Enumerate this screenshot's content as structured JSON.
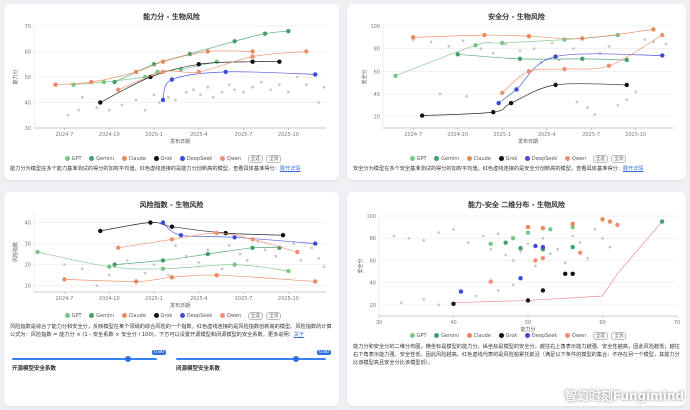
{
  "colors": {
    "GPT": "#7bc58a",
    "Gemini": "#44a06a",
    "Claude": "#e98a5c",
    "Grok": "#111111",
    "DeepSeek": "#3d4bd8",
    "Qwen": "#ee8f72",
    "other": "#c9c9c9"
  },
  "legend": {
    "items": [
      "GPT",
      "Gemini",
      "Claude",
      "Grok",
      "DeepSeek",
      "Qwen"
    ],
    "btn_all": "全选",
    "btn_none": "全消"
  },
  "chart_data": [
    {
      "type": "scatter",
      "title": "能力分 - 生物风险",
      "xlabel": "发布日期",
      "ylabel": "能力分",
      "xticks": [
        "2024-7",
        "2024-10",
        "2025-1",
        "2025-4",
        "2025-7",
        "2025-10"
      ],
      "yticks": [
        30,
        40,
        50,
        60,
        70
      ],
      "ylim": [
        30,
        70
      ],
      "xlim": [
        2024.33,
        2025.96
      ],
      "series": [
        {
          "name": "GPT",
          "points": [
            [
              2024.55,
              47
            ],
            [
              2024.72,
              48
            ],
            [
              2024.95,
              50
            ],
            [
              2025.02,
              52
            ],
            [
              2025.15,
              53
            ],
            [
              2025.35,
              56
            ]
          ]
        },
        {
          "name": "Gemini",
          "points": [
            [
              2024.78,
              48
            ],
            [
              2025.0,
              55
            ],
            [
              2025.2,
              59
            ],
            [
              2025.45,
              64
            ],
            [
              2025.62,
              67
            ],
            [
              2025.75,
              68
            ]
          ]
        },
        {
          "name": "Claude",
          "points": [
            [
              2024.45,
              47
            ],
            [
              2024.65,
              48
            ],
            [
              2024.9,
              52
            ],
            [
              2025.05,
              56
            ],
            [
              2025.3,
              60
            ],
            [
              2025.55,
              60
            ]
          ]
        },
        {
          "name": "Grok",
          "points": [
            [
              2024.7,
              40
            ],
            [
              2024.98,
              50
            ],
            [
              2025.25,
              55
            ],
            [
              2025.55,
              56
            ],
            [
              2025.7,
              56
            ]
          ]
        },
        {
          "name": "DeepSeek",
          "points": [
            [
              2025.05,
              41
            ],
            [
              2025.1,
              49
            ],
            [
              2025.4,
              52
            ],
            [
              2025.9,
              51
            ]
          ]
        },
        {
          "name": "Qwen",
          "points": [
            [
              2024.8,
              45
            ],
            [
              2025.05,
              52
            ],
            [
              2025.25,
              52
            ],
            [
              2025.55,
              58
            ],
            [
              2025.85,
              60
            ]
          ]
        }
      ],
      "others": [
        [
          2024.52,
          35
        ],
        [
          2024.58,
          37
        ],
        [
          2024.6,
          42
        ],
        [
          2024.68,
          38
        ],
        [
          2024.75,
          37
        ],
        [
          2024.82,
          39
        ],
        [
          2024.9,
          41
        ],
        [
          2024.95,
          37
        ],
        [
          2025.0,
          43
        ],
        [
          2025.03,
          40
        ],
        [
          2025.08,
          42
        ],
        [
          2025.12,
          41
        ],
        [
          2025.18,
          44
        ],
        [
          2025.22,
          45
        ],
        [
          2025.26,
          43
        ],
        [
          2025.3,
          46
        ],
        [
          2025.33,
          42
        ],
        [
          2025.38,
          44
        ],
        [
          2025.42,
          47
        ],
        [
          2025.45,
          45
        ],
        [
          2025.5,
          44
        ],
        [
          2025.55,
          46
        ],
        [
          2025.6,
          48
        ],
        [
          2025.65,
          45
        ],
        [
          2025.7,
          47
        ],
        [
          2025.75,
          44
        ],
        [
          2025.8,
          50
        ],
        [
          2025.85,
          47
        ],
        [
          2025.92,
          40
        ],
        [
          2025.95,
          46
        ]
      ],
      "description": "能力分为模型在多个能力基准测试的得分的加权平均值。红色虚线连接的是能力分创新高的模型，查看具体基准得分：",
      "link": "展开详情"
    },
    {
      "type": "scatter",
      "title": "安全分 - 生物风险",
      "xlabel": "发布日期",
      "ylabel": "安全分",
      "xticks": [
        "2024-7",
        "2024-10",
        "2025-1",
        "2025-4",
        "2025-7",
        "2025-10"
      ],
      "yticks": [
        20,
        40,
        60,
        80,
        100
      ],
      "ylim": [
        10,
        100
      ],
      "xlim": [
        2024.33,
        2025.96
      ],
      "series": [
        {
          "name": "GPT",
          "points": [
            [
              2024.4,
              56
            ],
            [
              2024.85,
              83
            ],
            [
              2025.0,
              85
            ],
            [
              2025.35,
              88
            ],
            [
              2025.65,
              92
            ]
          ]
        },
        {
          "name": "Gemini",
          "points": [
            [
              2024.75,
              75
            ],
            [
              2025.1,
              71
            ],
            [
              2025.45,
              71
            ],
            [
              2025.7,
              70
            ]
          ]
        },
        {
          "name": "Claude",
          "points": [
            [
              2024.5,
              90
            ],
            [
              2024.9,
              92
            ],
            [
              2025.15,
              91
            ],
            [
              2025.45,
              89
            ],
            [
              2025.85,
              97
            ]
          ]
        },
        {
          "name": "Grok",
          "points": [
            [
              2024.55,
              21
            ],
            [
              2024.95,
              24
            ],
            [
              2025.05,
              32
            ],
            [
              2025.3,
              48
            ],
            [
              2025.7,
              48
            ]
          ]
        },
        {
          "name": "DeepSeek",
          "points": [
            [
              2024.98,
              32
            ],
            [
              2025.08,
              44
            ],
            [
              2025.3,
              73
            ],
            [
              2025.9,
              74
            ]
          ]
        },
        {
          "name": "Qwen",
          "points": [
            [
              2025.0,
              41
            ],
            [
              2025.15,
              60
            ],
            [
              2025.35,
              62
            ],
            [
              2025.6,
              65
            ],
            [
              2025.9,
              92
            ]
          ]
        }
      ],
      "others": [
        [
          2024.5,
          88
        ],
        [
          2024.6,
          86
        ],
        [
          2024.7,
          82
        ],
        [
          2024.78,
          87
        ],
        [
          2024.88,
          80
        ],
        [
          2024.95,
          76
        ],
        [
          2025.02,
          84
        ],
        [
          2025.1,
          78
        ],
        [
          2025.18,
          80
        ],
        [
          2025.22,
          68
        ],
        [
          2025.28,
          85
        ],
        [
          2025.32,
          70
        ],
        [
          2025.4,
          80
        ],
        [
          2025.42,
          33
        ],
        [
          2025.48,
          28
        ],
        [
          2025.52,
          22
        ],
        [
          2025.55,
          76
        ],
        [
          2025.6,
          82
        ],
        [
          2025.65,
          30
        ],
        [
          2025.7,
          35
        ],
        [
          2025.75,
          42
        ],
        [
          2025.8,
          88
        ],
        [
          2025.85,
          86
        ],
        [
          2025.92,
          84
        ],
        [
          2024.65,
          40
        ],
        [
          2024.8,
          38
        ]
      ],
      "description": "安全分为模型在多个安全基准测试的得分的加权平均值。红色虚线连接的是安全分创新高的模型，查看具体基准得分：",
      "link": "展开详情"
    },
    {
      "type": "scatter",
      "title": "风险指数 - 生物风险",
      "xlabel": "发布日期",
      "ylabel": "风险指数",
      "xticks": [
        "2024-7",
        "2024-10",
        "2025-1",
        "2025-4",
        "2025-7",
        "2025-10"
      ],
      "yticks": [
        10,
        20,
        30,
        40
      ],
      "ylim": [
        7,
        45
      ],
      "xlim": [
        2024.33,
        2025.96
      ],
      "series": [
        {
          "name": "GPT",
          "points": [
            [
              2024.35,
              26
            ],
            [
              2024.75,
              19
            ],
            [
              2025.05,
              18
            ],
            [
              2025.45,
              20
            ],
            [
              2025.75,
              17
            ]
          ]
        },
        {
          "name": "Gemini",
          "points": [
            [
              2024.78,
              20
            ],
            [
              2025.05,
              22
            ],
            [
              2025.3,
              25
            ],
            [
              2025.55,
              28
            ],
            [
              2025.7,
              28
            ]
          ]
        },
        {
          "name": "Claude",
          "points": [
            [
              2024.5,
              13
            ],
            [
              2024.9,
              12
            ],
            [
              2025.1,
              14
            ],
            [
              2025.35,
              15
            ],
            [
              2025.9,
              12
            ]
          ]
        },
        {
          "name": "Grok",
          "points": [
            [
              2024.7,
              36
            ],
            [
              2024.98,
              40
            ],
            [
              2025.1,
              38
            ],
            [
              2025.4,
              35
            ],
            [
              2025.72,
              34
            ]
          ]
        },
        {
          "name": "DeepSeek",
          "points": [
            [
              2025.05,
              40
            ],
            [
              2025.15,
              34
            ],
            [
              2025.45,
              33
            ],
            [
              2025.9,
              30
            ]
          ]
        },
        {
          "name": "Qwen",
          "points": [
            [
              2024.8,
              28
            ],
            [
              2025.1,
              32
            ],
            [
              2025.35,
              35
            ],
            [
              2025.55,
              32
            ],
            [
              2025.8,
              26
            ]
          ]
        }
      ],
      "others": [
        [
          2024.5,
          20
        ],
        [
          2024.6,
          18
        ],
        [
          2024.68,
          10
        ],
        [
          2024.75,
          15
        ],
        [
          2024.85,
          22
        ],
        [
          2024.95,
          16
        ],
        [
          2025.0,
          20
        ],
        [
          2025.08,
          15
        ],
        [
          2025.12,
          29
        ],
        [
          2025.18,
          24
        ],
        [
          2025.25,
          21
        ],
        [
          2025.3,
          27
        ],
        [
          2025.38,
          18
        ],
        [
          2025.42,
          29
        ],
        [
          2025.48,
          25
        ],
        [
          2025.52,
          22
        ],
        [
          2025.58,
          31
        ],
        [
          2025.62,
          27
        ],
        [
          2025.68,
          24
        ],
        [
          2025.78,
          30
        ],
        [
          2025.82,
          22
        ],
        [
          2025.88,
          28
        ],
        [
          2025.92,
          23
        ],
        [
          2025.95,
          19
        ]
      ],
      "description": "风险指数是综合了能力分和安全分，反映模型在某个领域的综合风险的一个指数。红色虚线连接的是风险指数创新高的模型。风险指数的计算公式为：风险指数 = 能力分 × (1 - 安全系数 × 安全分 / 100)，下方可以设置开源模型和闭源模型的安全系数。更多说明：",
      "link": "关于"
    },
    {
      "type": "scatter",
      "title": "能力-安全 二维分布 - 生物风险",
      "xlabel": "能力分",
      "ylabel": "安全分",
      "xticks": [
        30,
        40,
        50,
        60,
        70
      ],
      "yticks": [
        20,
        40,
        60,
        80,
        100
      ],
      "xlim": [
        30,
        70
      ],
      "ylim": [
        10,
        100
      ],
      "series": [
        {
          "name": "GPT",
          "points": [
            [
              45,
              75
            ],
            [
              48,
              80
            ],
            [
              50,
              85
            ],
            [
              53,
              88
            ],
            [
              56,
              90
            ]
          ]
        },
        {
          "name": "Gemini",
          "points": [
            [
              47,
              76
            ],
            [
              49,
              71
            ],
            [
              52,
              70
            ],
            [
              56,
              72
            ],
            [
              68,
              95
            ]
          ]
        },
        {
          "name": "Claude",
          "points": [
            [
              50,
              90
            ],
            [
              52,
              89
            ],
            [
              56,
              93
            ],
            [
              60,
              97
            ],
            [
              61,
              95
            ]
          ]
        },
        {
          "name": "Grok",
          "points": [
            [
              40,
              21
            ],
            [
              50,
              24
            ],
            [
              52,
              33
            ],
            [
              55,
              48
            ],
            [
              56,
              48
            ]
          ]
        },
        {
          "name": "DeepSeek",
          "points": [
            [
              41,
              32
            ],
            [
              49,
              44
            ],
            [
              51,
              73
            ],
            [
              52,
              72
            ]
          ]
        },
        {
          "name": "Qwen",
          "points": [
            [
              45,
              41
            ],
            [
              51,
              60
            ],
            [
              52,
              62
            ],
            [
              57,
              67
            ],
            [
              62,
              92
            ]
          ]
        }
      ],
      "frontier": [
        [
          40,
          22
        ],
        [
          50,
          24
        ],
        [
          60,
          28
        ],
        [
          62,
          48
        ],
        [
          68,
          95
        ]
      ],
      "others": [
        [
          32,
          82
        ],
        [
          34,
          80
        ],
        [
          36,
          78
        ],
        [
          38,
          85
        ],
        [
          40,
          88
        ],
        [
          42,
          76
        ],
        [
          44,
          82
        ],
        [
          45,
          70
        ],
        [
          46,
          84
        ],
        [
          47,
          65
        ],
        [
          48,
          60
        ],
        [
          49,
          68
        ],
        [
          50,
          75
        ],
        [
          51,
          55
        ],
        [
          52,
          80
        ],
        [
          53,
          66
        ],
        [
          54,
          70
        ],
        [
          55,
          58
        ],
        [
          56,
          82
        ],
        [
          57,
          76
        ],
        [
          58,
          62
        ],
        [
          59,
          88
        ],
        [
          60,
          80
        ],
        [
          61,
          72
        ],
        [
          33,
          22
        ],
        [
          36,
          25
        ],
        [
          38,
          20
        ],
        [
          43,
          28
        ],
        [
          46,
          33
        ],
        [
          48,
          38
        ]
      ],
      "description": "能力分和安全分的二维分布图，横坐标是模型的能力分，纵坐标是模型的安全分，越往右上角表示能力越强、安全性越高，因此风险越低；越往右下角表示能力强、安全性低，因此风险越高。红色虚线代表的是风险帕累托前沿（满足以下条件的模型的集合：不存在另一个模型，其能力分比该模型高且安全分比该模型低）。"
    }
  ],
  "sliders": {
    "open_label": "开源模型安全系数",
    "open_value": "0.80",
    "open_frac": 0.8,
    "closed_label": "闭源模型安全系数",
    "closed_value": "0.80",
    "closed_frac": 0.8
  },
  "watermark": "智幻时刻Fungimind"
}
